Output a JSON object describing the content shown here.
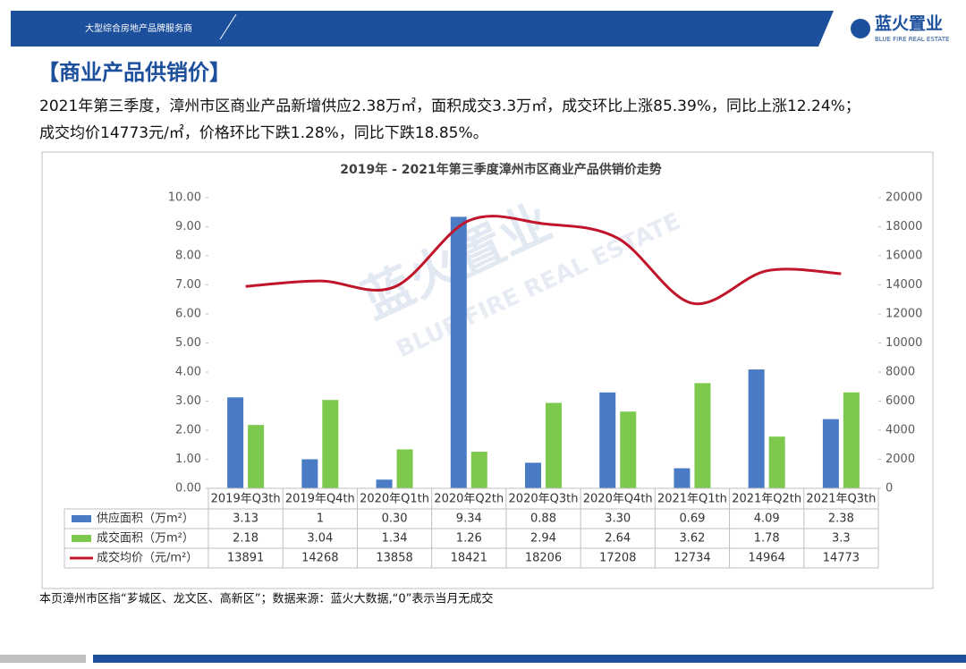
{
  "header": {
    "tagline": "大型综合房地产品牌服务商",
    "logo": "蓝火置业",
    "logo_en": "BLUE FIRE REAL ESTATE"
  },
  "section_title": "【商业产品供销价】",
  "summary": [
    "2021年第三季度，漳州市区商业产品新增供应2.38万㎡，面积成交3.3万㎡，成交环比上涨85.39%，同比上涨12.24%；",
    "成交均价14773元/㎡，价格环比下跌1.28%，同比下跌18.85%。"
  ],
  "chart_data": {
    "type": "bar",
    "title": "2019年 - 2021年第三季度漳州市区商业产品供销价走势",
    "categories": [
      "2019年Q3th",
      "2019年Q4th",
      "2020年Q1th",
      "2020年Q2th",
      "2020年Q3th",
      "2020年Q4th",
      "2021年Q1th",
      "2021年Q2th",
      "2021年Q3th"
    ],
    "series": [
      {
        "name": "供应面积（万m²）",
        "color": "#4a7bc4",
        "values": [
          3.13,
          1,
          0.3,
          9.34,
          0.88,
          3.3,
          0.69,
          4.09,
          2.38
        ],
        "value_labels": [
          "3.13",
          "1",
          "0.30",
          "9.34",
          "0.88",
          "3.30",
          "0.69",
          "4.09",
          "2.38"
        ]
      },
      {
        "name": "成交面积（万m²）",
        "color": "#7dc94e",
        "values": [
          2.18,
          3.04,
          1.34,
          1.26,
          2.94,
          2.64,
          3.62,
          1.78,
          3.3
        ]
      },
      {
        "name": "成交均价（元/m²）",
        "color": "#c0152a",
        "type": "line",
        "axis": "y2",
        "values": [
          13891,
          14268,
          13858,
          18421,
          18206,
          17208,
          12734,
          14964,
          14773
        ]
      }
    ],
    "ylim": [
      0,
      10
    ],
    "yticks": [
      {
        "value": 0,
        "label": "0.00"
      },
      {
        "value": 1,
        "label": "1.00"
      },
      {
        "value": 2,
        "label": "2.00"
      },
      {
        "value": 3,
        "label": "3.00"
      },
      {
        "value": 4,
        "label": "4.00"
      },
      {
        "value": 5,
        "label": "5.00"
      },
      {
        "value": 6,
        "label": "6.00"
      },
      {
        "value": 7,
        "label": "7.00"
      },
      {
        "value": 8,
        "label": "8.00"
      },
      {
        "value": 9,
        "label": "9.00"
      },
      {
        "value": 10,
        "label": "10.00"
      }
    ],
    "y2lim": [
      0,
      20000
    ],
    "y2ticks": [
      0,
      2000,
      4000,
      6000,
      8000,
      10000,
      12000,
      14000,
      16000,
      18000,
      20000
    ],
    "data_table": true
  },
  "footnote": "本页漳州市区指“芗城区、龙文区、高新区”；数据来源：蓝火大数据,“0”表示当月无成交"
}
